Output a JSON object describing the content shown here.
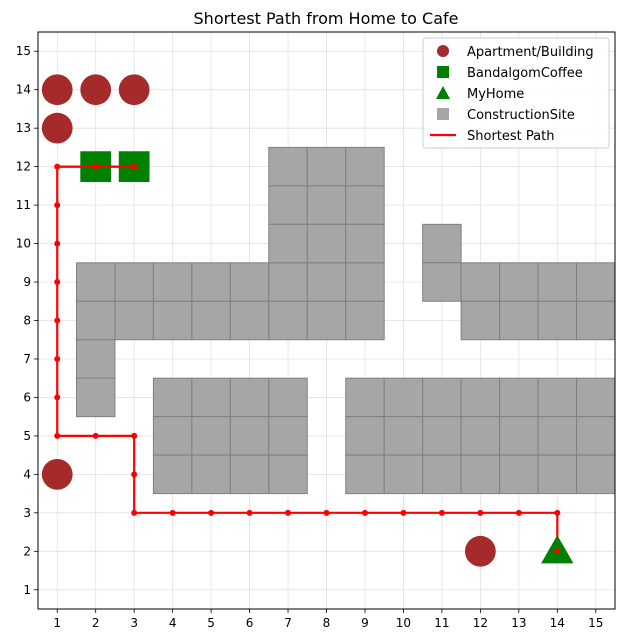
{
  "chart_data": {
    "type": "scatter",
    "title": "Shortest Path from Home to Cafe",
    "xlabel": "",
    "ylabel": "",
    "xlim": [
      0.5,
      15.5
    ],
    "ylim": [
      0.5,
      15.5
    ],
    "xticks": [
      "1",
      "2",
      "3",
      "4",
      "5",
      "6",
      "7",
      "8",
      "9",
      "10",
      "11",
      "12",
      "13",
      "14",
      "15"
    ],
    "yticks": [
      "1",
      "2",
      "3",
      "4",
      "5",
      "6",
      "7",
      "8",
      "9",
      "10",
      "11",
      "12",
      "13",
      "14",
      "15"
    ],
    "grid": true,
    "legend_position": "top-right",
    "colors": {
      "apartment": "#a52a2a",
      "cafe": "#008000",
      "home": "#008000",
      "construction": "#a6a6a6",
      "construction_edge": "#808080",
      "path": "#ff0000",
      "grid": "#e0e0e0"
    },
    "legend": [
      {
        "label": "Apartment/Building",
        "marker": "circle"
      },
      {
        "label": "BandalgomCoffee",
        "marker": "square"
      },
      {
        "label": "MyHome",
        "marker": "triangle"
      },
      {
        "label": "ConstructionSite",
        "marker": "gray-square"
      },
      {
        "label": "Shortest Path",
        "marker": "line"
      }
    ],
    "series": [
      {
        "name": "Apartment/Building",
        "points": [
          [
            1,
            14
          ],
          [
            2,
            14
          ],
          [
            3,
            14
          ],
          [
            1,
            13
          ],
          [
            1,
            4
          ],
          [
            12,
            2
          ]
        ]
      },
      {
        "name": "BandalgomCoffee",
        "points": [
          [
            2,
            12
          ],
          [
            3,
            12
          ]
        ]
      },
      {
        "name": "MyHome",
        "points": [
          [
            14,
            2
          ]
        ]
      },
      {
        "name": "ConstructionSite",
        "cells": [
          [
            2,
            9
          ],
          [
            3,
            9
          ],
          [
            4,
            9
          ],
          [
            5,
            9
          ],
          [
            6,
            9
          ],
          [
            7,
            9
          ],
          [
            8,
            9
          ],
          [
            9,
            9
          ],
          [
            2,
            8
          ],
          [
            3,
            8
          ],
          [
            4,
            8
          ],
          [
            5,
            8
          ],
          [
            6,
            8
          ],
          [
            7,
            8
          ],
          [
            8,
            8
          ],
          [
            9,
            8
          ],
          [
            2,
            7
          ],
          [
            2,
            6
          ],
          [
            7,
            12
          ],
          [
            8,
            12
          ],
          [
            9,
            12
          ],
          [
            7,
            11
          ],
          [
            8,
            11
          ],
          [
            9,
            11
          ],
          [
            7,
            10
          ],
          [
            8,
            10
          ],
          [
            9,
            10
          ],
          [
            11,
            10
          ],
          [
            11,
            9
          ],
          [
            12,
            9
          ],
          [
            13,
            9
          ],
          [
            14,
            9
          ],
          [
            15,
            9
          ],
          [
            12,
            8
          ],
          [
            13,
            8
          ],
          [
            14,
            8
          ],
          [
            15,
            8
          ],
          [
            4,
            6
          ],
          [
            5,
            6
          ],
          [
            6,
            6
          ],
          [
            7,
            6
          ],
          [
            4,
            5
          ],
          [
            5,
            5
          ],
          [
            6,
            5
          ],
          [
            7,
            5
          ],
          [
            4,
            4
          ],
          [
            5,
            4
          ],
          [
            6,
            4
          ],
          [
            7,
            4
          ],
          [
            9,
            6
          ],
          [
            10,
            6
          ],
          [
            11,
            6
          ],
          [
            12,
            6
          ],
          [
            13,
            6
          ],
          [
            14,
            6
          ],
          [
            15,
            6
          ],
          [
            9,
            5
          ],
          [
            10,
            5
          ],
          [
            11,
            5
          ],
          [
            12,
            5
          ],
          [
            13,
            5
          ],
          [
            14,
            5
          ],
          [
            15,
            5
          ],
          [
            9,
            4
          ],
          [
            10,
            4
          ],
          [
            11,
            4
          ],
          [
            12,
            4
          ],
          [
            13,
            4
          ],
          [
            14,
            4
          ],
          [
            15,
            4
          ]
        ]
      },
      {
        "name": "Shortest Path",
        "points": [
          [
            14,
            2
          ],
          [
            14,
            3
          ],
          [
            13,
            3
          ],
          [
            12,
            3
          ],
          [
            11,
            3
          ],
          [
            10,
            3
          ],
          [
            9,
            3
          ],
          [
            8,
            3
          ],
          [
            7,
            3
          ],
          [
            6,
            3
          ],
          [
            5,
            3
          ],
          [
            4,
            3
          ],
          [
            3,
            3
          ],
          [
            3,
            4
          ],
          [
            3,
            5
          ],
          [
            2,
            5
          ],
          [
            1,
            5
          ],
          [
            1,
            6
          ],
          [
            1,
            7
          ],
          [
            1,
            8
          ],
          [
            1,
            9
          ],
          [
            1,
            10
          ],
          [
            1,
            11
          ],
          [
            1,
            12
          ],
          [
            2,
            12
          ],
          [
            3,
            12
          ]
        ]
      }
    ]
  }
}
